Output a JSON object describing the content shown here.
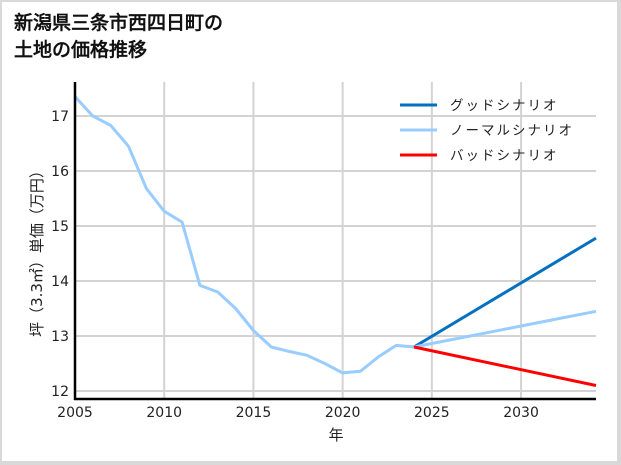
{
  "title_lines": [
    "新潟県三条市西四日町の",
    "土地の価格推移"
  ],
  "chart_data": {
    "type": "line",
    "title": "新潟県三条市西四日町の土地の価格推移",
    "xlabel": "年",
    "ylabel": "坪（3.3㎡）単価（万円）",
    "xlim": [
      2005,
      2034.2
    ],
    "ylim": [
      11.9,
      17.6
    ],
    "xticks": [
      2005,
      2010,
      2015,
      2020,
      2025,
      2030
    ],
    "yticks": [
      12,
      13,
      14,
      15,
      16,
      17
    ],
    "grid": true,
    "legend_position": "upper right",
    "history": {
      "x": [
        2005,
        2006,
        2007,
        2008,
        2009,
        2010,
        2011,
        2012,
        2013,
        2014,
        2015,
        2016,
        2017,
        2018,
        2019,
        2020,
        2021,
        2022,
        2023,
        2024
      ],
      "values": [
        17.35,
        17.0,
        16.83,
        16.45,
        15.68,
        15.27,
        15.07,
        13.92,
        13.8,
        13.5,
        13.1,
        12.8,
        12.72,
        12.65,
        12.5,
        12.33,
        12.36,
        12.62,
        12.83,
        12.8
      ]
    },
    "series": [
      {
        "name": "グッドシナリオ",
        "color": "#0070c0",
        "x": [
          2024,
          2034.2
        ],
        "values": [
          12.8,
          14.78
        ]
      },
      {
        "name": "ノーマルシナリオ",
        "color": "#99ccff",
        "x": [
          2024,
          2034.2
        ],
        "values": [
          12.8,
          13.45
        ]
      },
      {
        "name": "バッドシナリオ",
        "color": "#ff0000",
        "x": [
          2024,
          2034.2
        ],
        "values": [
          12.8,
          12.1
        ]
      }
    ],
    "history_color": "#99ccff"
  }
}
